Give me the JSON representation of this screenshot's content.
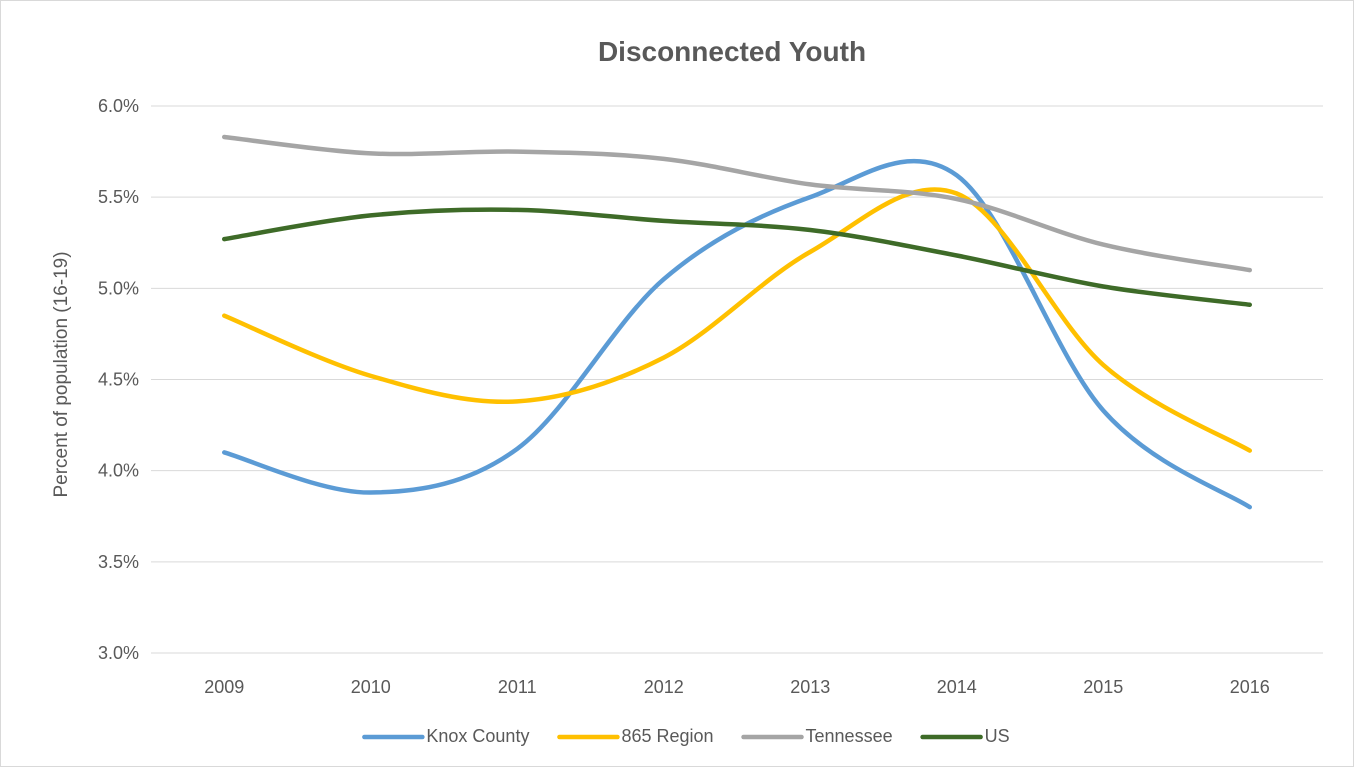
{
  "chart_data": {
    "type": "line",
    "title": "Disconnected Youth",
    "xlabel": "",
    "ylabel": "Percent of population (16-19)",
    "categories": [
      "2009",
      "2010",
      "2011",
      "2012",
      "2013",
      "2014",
      "2015",
      "2016"
    ],
    "ylim": [
      3.0,
      6.0
    ],
    "yticks": [
      3.0,
      3.5,
      4.0,
      4.5,
      5.0,
      5.5,
      6.0
    ],
    "ytick_labels": [
      "3.0%",
      "3.5%",
      "4.0%",
      "4.5%",
      "5.0%",
      "5.5%",
      "6.0%"
    ],
    "grid": true,
    "smooth": true,
    "legend_position": "bottom",
    "series": [
      {
        "name": "Knox County",
        "color": "#5b9bd5",
        "values": [
          4.1,
          3.88,
          4.12,
          5.05,
          5.5,
          5.62,
          4.33,
          3.8
        ]
      },
      {
        "name": "865 Region",
        "color": "#ffc000",
        "values": [
          4.85,
          4.52,
          4.38,
          4.62,
          5.2,
          5.52,
          4.58,
          4.11
        ]
      },
      {
        "name": "Tennessee",
        "color": "#a5a5a5",
        "values": [
          5.83,
          5.74,
          5.75,
          5.71,
          5.57,
          5.49,
          5.24,
          5.1
        ]
      },
      {
        "name": "US",
        "color": "#3e6b28",
        "values": [
          5.27,
          5.4,
          5.43,
          5.37,
          5.32,
          5.18,
          5.01,
          4.91
        ]
      }
    ]
  }
}
